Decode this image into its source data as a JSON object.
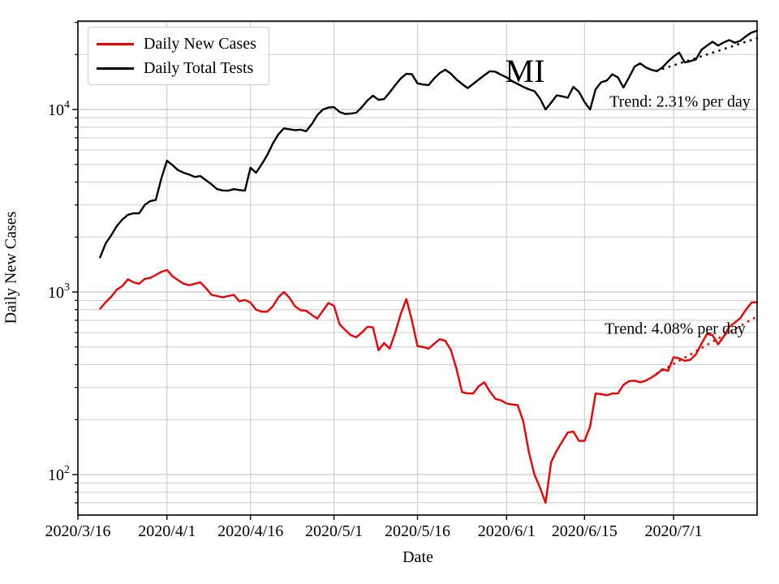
{
  "figure": {
    "title": "MI",
    "legend": [
      {
        "label": "Daily New Cases",
        "color": "#f20000"
      },
      {
        "label": "Daily Total Tests",
        "color": "#000000"
      }
    ],
    "annotations": [
      {
        "id": "tests-trend",
        "text": "Trend: 2.31% per day"
      },
      {
        "id": "cases-trend",
        "text": "Trend: 4.08% per day"
      }
    ]
  },
  "chart_data": {
    "type": "line",
    "title": "MI",
    "xlabel": "Date",
    "ylabel": "Daily New Cases",
    "yscale": "log",
    "ylim": [
      60,
      30500
    ],
    "xlim_days": [
      0,
      122
    ],
    "grid": "both",
    "legend_position": "upper-left",
    "x_epoch_label": "2020/3/16",
    "series_start_date": "2020/3/20",
    "series_start_day": 4,
    "series_cadence": "daily",
    "xticks": [
      {
        "day": 0,
        "label": "2020/3/16"
      },
      {
        "day": 16,
        "label": "2020/4/1"
      },
      {
        "day": 31,
        "label": "2020/4/16"
      },
      {
        "day": 46,
        "label": "2020/5/1"
      },
      {
        "day": 61,
        "label": "2020/5/16"
      },
      {
        "day": 77,
        "label": "2020/6/1"
      },
      {
        "day": 91,
        "label": "2020/6/15"
      },
      {
        "day": 107,
        "label": "2020/7/1"
      }
    ],
    "ytick_base": "10",
    "yticks_major": [
      {
        "value": 10000,
        "exponent": "4"
      },
      {
        "value": 1000,
        "exponent": "3"
      },
      {
        "value": 100,
        "exponent": "2"
      }
    ],
    "yticks_minor": [
      70,
      80,
      90,
      200,
      300,
      400,
      500,
      600,
      700,
      800,
      900,
      2000,
      3000,
      4000,
      5000,
      6000,
      7000,
      8000,
      9000,
      20000,
      30000
    ],
    "series": [
      {
        "name": "Daily New Cases",
        "color": "#f20000",
        "style": "solid",
        "values": [
          810,
          880,
          945,
          1030,
          1080,
          1175,
          1130,
          1110,
          1180,
          1195,
          1240,
          1290,
          1320,
          1220,
          1160,
          1110,
          1090,
          1110,
          1130,
          1050,
          965,
          950,
          935,
          950,
          965,
          890,
          905,
          875,
          800,
          780,
          780,
          835,
          935,
          1000,
          930,
          835,
          795,
          790,
          750,
          715,
          790,
          870,
          840,
          665,
          620,
          580,
          565,
          600,
          645,
          640,
          480,
          525,
          490,
          600,
          760,
          915,
          700,
          505,
          500,
          490,
          520,
          552,
          540,
          480,
          380,
          283,
          278,
          278,
          305,
          320,
          285,
          260,
          255,
          245,
          242,
          240,
          195,
          133,
          100,
          85,
          70,
          117,
          135,
          152,
          170,
          172,
          153,
          153,
          183,
          278,
          276,
          272,
          278,
          278,
          310,
          325,
          327,
          320,
          327,
          340,
          355,
          378,
          370,
          440,
          433,
          420,
          425,
          455,
          520,
          590,
          580,
          517,
          570,
          645,
          680,
          720,
          800,
          875,
          880
        ]
      },
      {
        "name": "Daily Total Tests",
        "color": "#000000",
        "style": "solid",
        "values": [
          1550,
          1850,
          2050,
          2300,
          2500,
          2650,
          2700,
          2700,
          3000,
          3150,
          3200,
          4200,
          5250,
          4950,
          4650,
          4500,
          4400,
          4270,
          4320,
          4100,
          3890,
          3660,
          3600,
          3590,
          3660,
          3620,
          3590,
          4800,
          4500,
          5000,
          5620,
          6500,
          7300,
          7880,
          7800,
          7700,
          7750,
          7600,
          8300,
          9300,
          10000,
          10250,
          10300,
          9700,
          9450,
          9500,
          9600,
          10300,
          11200,
          11900,
          11300,
          11400,
          12400,
          13600,
          14800,
          15700,
          15600,
          13900,
          13700,
          13600,
          14800,
          15850,
          16500,
          15700,
          14600,
          13800,
          13100,
          13800,
          14600,
          15400,
          16200,
          16100,
          15500,
          15000,
          14300,
          13800,
          13300,
          12900,
          12600,
          11500,
          10000,
          10900,
          11950,
          11800,
          11600,
          13300,
          12500,
          11000,
          10000,
          12900,
          14100,
          14400,
          15600,
          15000,
          13200,
          15000,
          17200,
          17900,
          17000,
          16500,
          16200,
          17000,
          18300,
          19500,
          20500,
          18100,
          18400,
          18800,
          21200,
          22400,
          23500,
          22400,
          23300,
          24000,
          23200,
          23800,
          25200,
          26400,
          27000
        ]
      }
    ],
    "trend_lines": [
      {
        "name": "tests-trend",
        "color": "#000000",
        "style": "dotted",
        "start_day": 104,
        "end_day": 122,
        "start_value": 16300,
        "growth_pct_per_day": 2.31
      },
      {
        "name": "cases-trend",
        "color": "#f20000",
        "style": "dotted",
        "start_day": 104,
        "end_day": 122,
        "start_value": 358,
        "growth_pct_per_day": 4.08
      }
    ]
  }
}
